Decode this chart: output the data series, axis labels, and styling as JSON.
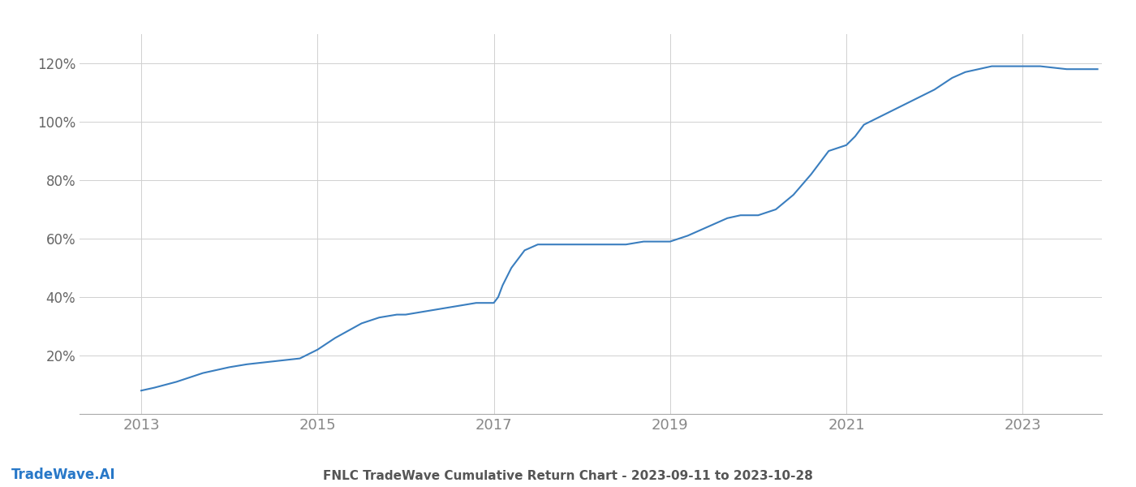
{
  "title": "FNLC TradeWave Cumulative Return Chart - 2023-09-11 to 2023-10-28",
  "watermark": "TradeWave.AI",
  "line_color": "#3a7ebf",
  "line_width": 1.5,
  "background_color": "#ffffff",
  "grid_color": "#d0d0d0",
  "xlabel_color": "#888888",
  "ylabel_color": "#666666",
  "title_color": "#555555",
  "watermark_color": "#2878c8",
  "x_years": [
    2013,
    2015,
    2017,
    2019,
    2021,
    2023
  ],
  "y_ticks": [
    20,
    40,
    60,
    80,
    100,
    120
  ],
  "xlim": [
    2012.3,
    2023.9
  ],
  "ylim": [
    0,
    130
  ],
  "data_points": {
    "x": [
      2013.0,
      2013.15,
      2013.4,
      2013.7,
      2014.0,
      2014.2,
      2014.5,
      2014.8,
      2015.0,
      2015.2,
      2015.5,
      2015.7,
      2015.9,
      2016.0,
      2016.2,
      2016.4,
      2016.6,
      2016.8,
      2017.0,
      2017.05,
      2017.1,
      2017.2,
      2017.35,
      2017.5,
      2017.7,
      2017.9,
      2018.0,
      2018.2,
      2018.5,
      2018.7,
      2018.9,
      2019.0,
      2019.1,
      2019.2,
      2019.35,
      2019.5,
      2019.65,
      2019.8,
      2020.0,
      2020.2,
      2020.4,
      2020.6,
      2020.8,
      2021.0,
      2021.1,
      2021.2,
      2021.4,
      2021.6,
      2021.8,
      2022.0,
      2022.1,
      2022.2,
      2022.35,
      2022.5,
      2022.65,
      2022.8,
      2023.0,
      2023.2,
      2023.5,
      2023.7,
      2023.85
    ],
    "y": [
      8,
      9,
      11,
      14,
      16,
      17,
      18,
      19,
      22,
      26,
      31,
      33,
      34,
      34,
      35,
      36,
      37,
      38,
      38,
      40,
      44,
      50,
      56,
      58,
      58,
      58,
      58,
      58,
      58,
      59,
      59,
      59,
      60,
      61,
      63,
      65,
      67,
      68,
      68,
      70,
      75,
      82,
      90,
      92,
      95,
      99,
      102,
      105,
      108,
      111,
      113,
      115,
      117,
      118,
      119,
      119,
      119,
      119,
      118,
      118,
      118
    ]
  }
}
